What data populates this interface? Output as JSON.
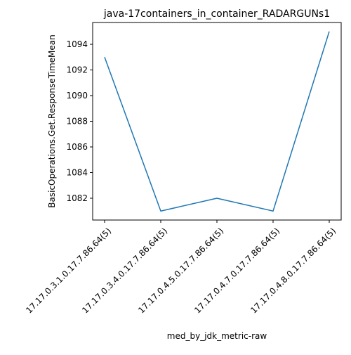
{
  "chart_data": {
    "type": "line",
    "title": "java-17containers_in_container_RADARGUNs1",
    "xlabel": "med_by_jdk_metric-raw",
    "ylabel": "BasicOperations.Get.ResponseTimeMean",
    "categories": [
      "17.17.0.3.1.0.17.7.86.64(5)",
      "17.17.0.3.4.0.17.7.86.64(5)",
      "17.17.0.4.5.0.17.7.86.64(5)",
      "17.17.0.4.7.0.17.7.86.64(5)",
      "17.17.0.4.8.0.17.7.86.64(5)"
    ],
    "series": [
      {
        "values": [
          1093,
          1081,
          1082,
          1081,
          1095
        ],
        "color": "#1f77b4"
      }
    ],
    "ylim": [
      1080.3,
      1095.7
    ],
    "yticks": [
      1082,
      1084,
      1086,
      1088,
      1090,
      1092,
      1094
    ],
    "grid": false,
    "legend": "none"
  }
}
